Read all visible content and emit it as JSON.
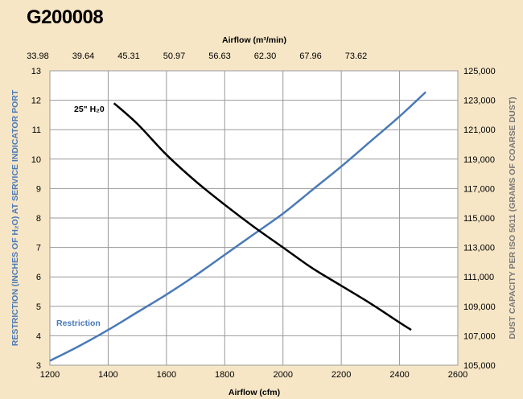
{
  "chart_data": {
    "type": "line",
    "title": "G200008",
    "xlabel": "Airflow (cfm)",
    "x2label": "Airflow (m³/min)",
    "ylabel": "RESTRICTION (INCHES OF H₂O) AT SERVICE INDICATOR PORT",
    "y2label": "DUST CAPACITY PER ISO 5011 (GRAMS OF COARSE DUST)",
    "xlim": [
      1200,
      2600
    ],
    "ylim": [
      3,
      13
    ],
    "y2lim": [
      105000,
      125000
    ],
    "x_ticks": [
      "1200",
      "1400",
      "1600",
      "1800",
      "2000",
      "2200",
      "2400",
      "2600"
    ],
    "x2_ticks": [
      "33.98",
      "39.64",
      "45.31",
      "50.97",
      "56.63",
      "62.30",
      "67.96",
      "73.62"
    ],
    "y_ticks": [
      "3",
      "4",
      "5",
      "6",
      "7",
      "8",
      "9",
      "10",
      "11",
      "12",
      "13"
    ],
    "y2_ticks": [
      "105,000",
      "107,000",
      "109,000",
      "111,000",
      "113,000",
      "115,000",
      "117,000",
      "119,000",
      "121,000",
      "123,000",
      "125,000"
    ],
    "grid": true,
    "series": [
      {
        "name": "Restriction",
        "axis": "left",
        "color": "#4a7ab8",
        "x": [
          1200,
          1300,
          1400,
          1500,
          1600,
          1700,
          1800,
          1900,
          2000,
          2100,
          2200,
          2300,
          2400,
          2490
        ],
        "y": [
          3.15,
          3.65,
          4.2,
          4.8,
          5.4,
          6.05,
          6.75,
          7.45,
          8.15,
          8.95,
          9.75,
          10.6,
          11.45,
          12.28
        ]
      },
      {
        "name": "25\" H₂0",
        "axis": "right",
        "color": "#000000",
        "x": [
          1420,
          1500,
          1600,
          1700,
          1800,
          1900,
          2000,
          2100,
          2200,
          2300,
          2400,
          2440
        ],
        "y": [
          122800,
          121400,
          119300,
          117500,
          115900,
          114400,
          113000,
          111600,
          110400,
          109200,
          107900,
          107400
        ]
      }
    ]
  },
  "colors": {
    "background": "#f7e6c6",
    "plot_background": "#ffffff",
    "restriction": "#4a7ab8",
    "dust": "#000000",
    "grid": "#999999"
  }
}
